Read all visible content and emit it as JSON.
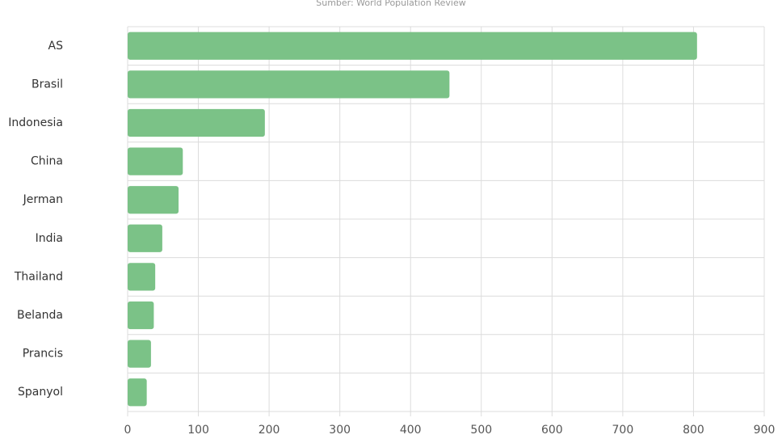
{
  "chart_data": {
    "type": "bar",
    "orientation": "horizontal",
    "subtitle": "Sumber: World Population Review",
    "categories": [
      "AS",
      "Brasil",
      "Indonesia",
      "China",
      "Jerman",
      "India",
      "Thailand",
      "Belanda",
      "Prancis",
      "Spanyol"
    ],
    "values": [
      805,
      455,
      194,
      78,
      72,
      49,
      39,
      37,
      33,
      27
    ],
    "color": "#7bc287",
    "xlim": [
      0,
      900
    ],
    "xticks": [
      0,
      100,
      200,
      300,
      400,
      500,
      600,
      700,
      800,
      900
    ],
    "grid": true
  }
}
